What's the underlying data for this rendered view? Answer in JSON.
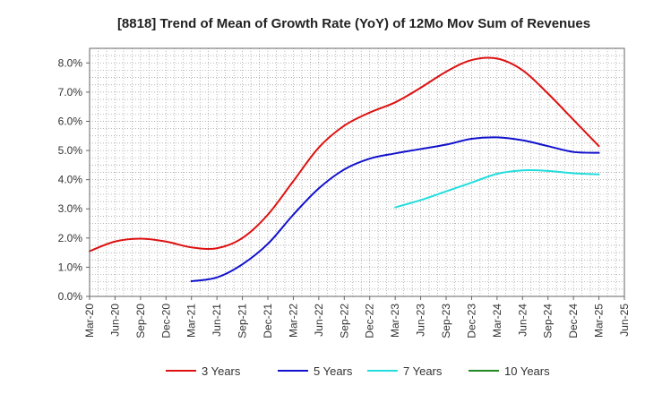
{
  "chart_data": {
    "type": "line",
    "title": "[8818]  Trend of Mean of Growth Rate (YoY) of 12Mo Mov Sum of Revenues",
    "xlabel": "",
    "ylabel": "",
    "ylim": [
      0,
      8.5
    ],
    "y_ticks": [
      0,
      1,
      2,
      3,
      4,
      5,
      6,
      7,
      8
    ],
    "y_tick_labels": [
      "0.0%",
      "1.0%",
      "2.0%",
      "3.0%",
      "4.0%",
      "5.0%",
      "6.0%",
      "7.0%",
      "8.0%"
    ],
    "x_tick_labels": [
      "Mar-20",
      "Jun-20",
      "Sep-20",
      "Dec-20",
      "Mar-21",
      "Jun-21",
      "Sep-21",
      "Dec-21",
      "Mar-22",
      "Jun-22",
      "Sep-22",
      "Dec-22",
      "Mar-23",
      "Jun-23",
      "Sep-23",
      "Dec-23",
      "Mar-24",
      "Jun-24",
      "Sep-24",
      "Dec-24",
      "Mar-25",
      "Jun-25"
    ],
    "grid": true,
    "legend_position": "bottom",
    "series": [
      {
        "name": "3 Years",
        "color": "#dd1111",
        "start_index": 0,
        "values": [
          1.55,
          1.88,
          1.98,
          1.88,
          1.68,
          1.65,
          2.0,
          2.8,
          3.95,
          5.1,
          5.85,
          6.3,
          6.65,
          7.15,
          7.7,
          8.1,
          8.15,
          7.75,
          6.95,
          6.05,
          5.15
        ]
      },
      {
        "name": "5 Years",
        "color": "#1111cc",
        "start_index": 4,
        "values": [
          0.52,
          0.65,
          1.1,
          1.8,
          2.8,
          3.7,
          4.35,
          4.72,
          4.9,
          5.05,
          5.2,
          5.4,
          5.45,
          5.35,
          5.15,
          4.95,
          4.92
        ]
      },
      {
        "name": "7 Years",
        "color": "#22dddd",
        "start_index": 12,
        "values": [
          3.05,
          3.3,
          3.6,
          3.9,
          4.2,
          4.32,
          4.3,
          4.22,
          4.18
        ]
      },
      {
        "name": "10 Years",
        "color": "#228822",
        "start_index": 0,
        "values": []
      }
    ]
  }
}
